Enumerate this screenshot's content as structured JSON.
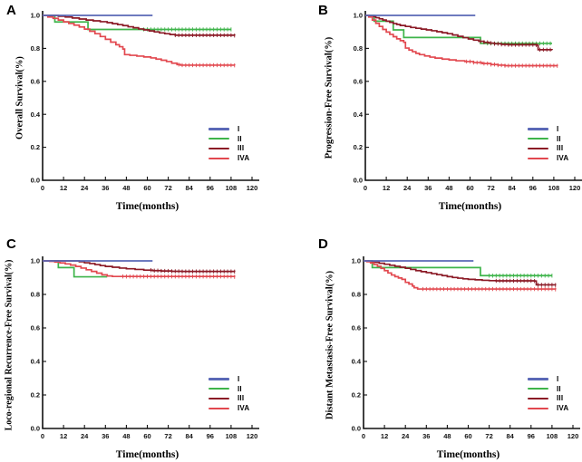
{
  "legend": {
    "items": [
      "I",
      "II",
      "III",
      "IVA"
    ],
    "position": "lower right"
  },
  "axes": {
    "xticks": [
      0,
      12,
      24,
      36,
      48,
      60,
      72,
      84,
      96,
      108,
      120
    ],
    "ytick_labels": [
      "1.0",
      "0.8",
      "0.6",
      "0.4",
      "0.2",
      "0.0"
    ],
    "xlim": [
      0,
      120
    ],
    "ylim": [
      0.0,
      1.0
    ]
  },
  "colors": {
    "I": "#5a68b6",
    "II": "#3eb44a",
    "III": "#8b1a26",
    "IVA": "#e2484f",
    "axis": "#111111"
  },
  "chart_data": [
    {
      "type": "line",
      "letter": "A",
      "ylabel": "Overall Survival(%)",
      "xlabel": "Time(months)",
      "xlim": [
        0,
        120
      ],
      "ylim": [
        0.0,
        1.0
      ],
      "legend_position": "lower right",
      "series": [
        {
          "name": "I",
          "color": "#5a68b6",
          "censor_from": null,
          "points": [
            [
              0,
              1
            ],
            [
              63,
              1
            ]
          ]
        },
        {
          "name": "II",
          "color": "#3eb44a",
          "censor_from": 58,
          "points": [
            [
              0,
              1
            ],
            [
              7,
              1
            ],
            [
              7,
              0.96
            ],
            [
              26,
              0.96
            ],
            [
              26,
              0.915
            ],
            [
              108,
              0.915
            ]
          ]
        },
        {
          "name": "III",
          "color": "#8b1a26",
          "censor_from": 76,
          "points": [
            [
              0,
              1
            ],
            [
              5,
              1
            ],
            [
              9,
              0.995
            ],
            [
              13,
              0.99
            ],
            [
              17,
              0.984
            ],
            [
              21,
              0.978
            ],
            [
              25,
              0.972
            ],
            [
              29,
              0.967
            ],
            [
              33,
              0.962
            ],
            [
              37,
              0.956
            ],
            [
              40,
              0.95
            ],
            [
              43,
              0.944
            ],
            [
              46,
              0.938
            ],
            [
              49,
              0.931
            ],
            [
              52,
              0.925
            ],
            [
              55,
              0.918
            ],
            [
              58,
              0.912
            ],
            [
              61,
              0.906
            ],
            [
              64,
              0.9
            ],
            [
              67,
              0.894
            ],
            [
              70,
              0.889
            ],
            [
              73,
              0.884
            ],
            [
              76,
              0.88
            ],
            [
              110,
              0.878
            ]
          ]
        },
        {
          "name": "IVA",
          "color": "#e2484f",
          "censor_from": 78,
          "points": [
            [
              0,
              1
            ],
            [
              3,
              0.99
            ],
            [
              6,
              0.982
            ],
            [
              9,
              0.972
            ],
            [
              12,
              0.961
            ],
            [
              15,
              0.951
            ],
            [
              18,
              0.941
            ],
            [
              21,
              0.93
            ],
            [
              24,
              0.917
            ],
            [
              27,
              0.904
            ],
            [
              30,
              0.889
            ],
            [
              33,
              0.872
            ],
            [
              36,
              0.855
            ],
            [
              39,
              0.838
            ],
            [
              42,
              0.822
            ],
            [
              44,
              0.81
            ],
            [
              46,
              0.796
            ],
            [
              47,
              0.762
            ],
            [
              50,
              0.758
            ],
            [
              54,
              0.753
            ],
            [
              58,
              0.748
            ],
            [
              62,
              0.742
            ],
            [
              65,
              0.735
            ],
            [
              68,
              0.728
            ],
            [
              71,
              0.72
            ],
            [
              74,
              0.71
            ],
            [
              77,
              0.702
            ],
            [
              79,
              0.698
            ],
            [
              110,
              0.697
            ]
          ]
        }
      ]
    },
    {
      "type": "line",
      "letter": "B",
      "ylabel": "Progression-Free Survival(%)",
      "xlabel": "Time(months)",
      "xlim": [
        0,
        120
      ],
      "ylim": [
        0.0,
        1.0
      ],
      "legend_position": "lower right",
      "series": [
        {
          "name": "I",
          "color": "#5a68b6",
          "censor_from": null,
          "points": [
            [
              0,
              1
            ],
            [
              63,
              1
            ]
          ]
        },
        {
          "name": "II",
          "color": "#3eb44a",
          "censor_from": 70,
          "points": [
            [
              0,
              1
            ],
            [
              5,
              1
            ],
            [
              5,
              0.965
            ],
            [
              16,
              0.965
            ],
            [
              16,
              0.912
            ],
            [
              22,
              0.912
            ],
            [
              22,
              0.866
            ],
            [
              66,
              0.866
            ],
            [
              66,
              0.83
            ],
            [
              107,
              0.83
            ]
          ]
        },
        {
          "name": "III",
          "color": "#8b1a26",
          "censor_from": 66,
          "points": [
            [
              0,
              1
            ],
            [
              2,
              0.998
            ],
            [
              4,
              0.993
            ],
            [
              6,
              0.986
            ],
            [
              8,
              0.979
            ],
            [
              10,
              0.972
            ],
            [
              12,
              0.965
            ],
            [
              14,
              0.958
            ],
            [
              16,
              0.951
            ],
            [
              18,
              0.945
            ],
            [
              20,
              0.939
            ],
            [
              23,
              0.933
            ],
            [
              26,
              0.927
            ],
            [
              29,
              0.922
            ],
            [
              32,
              0.917
            ],
            [
              35,
              0.912
            ],
            [
              38,
              0.907
            ],
            [
              41,
              0.901
            ],
            [
              44,
              0.895
            ],
            [
              47,
              0.889
            ],
            [
              50,
              0.881
            ],
            [
              53,
              0.873
            ],
            [
              56,
              0.865
            ],
            [
              59,
              0.857
            ],
            [
              62,
              0.85
            ],
            [
              65,
              0.843
            ],
            [
              68,
              0.837
            ],
            [
              71,
              0.832
            ],
            [
              74,
              0.828
            ],
            [
              78,
              0.824
            ],
            [
              82,
              0.822
            ],
            [
              98,
              0.82
            ],
            [
              99,
              0.792
            ],
            [
              107,
              0.79
            ]
          ]
        },
        {
          "name": "IVA",
          "color": "#e2484f",
          "censor_from": 58,
          "points": [
            [
              0,
              1
            ],
            [
              2,
              0.99
            ],
            [
              4,
              0.972
            ],
            [
              6,
              0.952
            ],
            [
              8,
              0.933
            ],
            [
              10,
              0.915
            ],
            [
              12,
              0.899
            ],
            [
              14,
              0.885
            ],
            [
              16,
              0.871
            ],
            [
              18,
              0.858
            ],
            [
              20,
              0.847
            ],
            [
              22,
              0.837
            ],
            [
              23,
              0.802
            ],
            [
              25,
              0.79
            ],
            [
              27,
              0.78
            ],
            [
              29,
              0.77
            ],
            [
              31,
              0.762
            ],
            [
              34,
              0.754
            ],
            [
              37,
              0.747
            ],
            [
              40,
              0.741
            ],
            [
              44,
              0.735
            ],
            [
              48,
              0.73
            ],
            [
              52,
              0.725
            ],
            [
              57,
              0.72
            ],
            [
              62,
              0.714
            ],
            [
              67,
              0.708
            ],
            [
              72,
              0.702
            ],
            [
              76,
              0.698
            ],
            [
              80,
              0.695
            ],
            [
              110,
              0.694
            ]
          ]
        }
      ]
    },
    {
      "type": "line",
      "letter": "C",
      "ylabel": "Loco-regional Recurrence-Free Survival(%)",
      "xlabel": "Time(months)",
      "xlim": [
        0,
        120
      ],
      "ylim": [
        0.0,
        1.0
      ],
      "legend_position": "lower right",
      "series": [
        {
          "name": "I",
          "color": "#5a68b6",
          "censor_from": null,
          "points": [
            [
              0,
              1
            ],
            [
              63,
              1
            ]
          ]
        },
        {
          "name": "II",
          "color": "#3eb44a",
          "censor_from": null,
          "points": [
            [
              0,
              1
            ],
            [
              9,
              1
            ],
            [
              9,
              0.96
            ],
            [
              18,
              0.96
            ],
            [
              18,
              0.905
            ],
            [
              37,
              0.905
            ]
          ]
        },
        {
          "name": "III",
          "color": "#8b1a26",
          "censor_from": 62,
          "points": [
            [
              0,
              1
            ],
            [
              18,
              1
            ],
            [
              21,
              0.995
            ],
            [
              24,
              0.989
            ],
            [
              27,
              0.984
            ],
            [
              30,
              0.978
            ],
            [
              33,
              0.972
            ],
            [
              36,
              0.967
            ],
            [
              40,
              0.962
            ],
            [
              44,
              0.957
            ],
            [
              48,
              0.953
            ],
            [
              53,
              0.949
            ],
            [
              58,
              0.945
            ],
            [
              63,
              0.942
            ],
            [
              68,
              0.94
            ],
            [
              74,
              0.938
            ],
            [
              80,
              0.937
            ],
            [
              110,
              0.936
            ]
          ]
        },
        {
          "name": "IVA",
          "color": "#e2484f",
          "censor_from": 46,
          "points": [
            [
              0,
              1
            ],
            [
              4,
              0.997
            ],
            [
              7,
              0.993
            ],
            [
              10,
              0.988
            ],
            [
              13,
              0.982
            ],
            [
              16,
              0.975
            ],
            [
              19,
              0.967
            ],
            [
              22,
              0.957
            ],
            [
              25,
              0.947
            ],
            [
              28,
              0.937
            ],
            [
              31,
              0.927
            ],
            [
              34,
              0.917
            ],
            [
              37,
              0.91
            ],
            [
              40,
              0.907
            ],
            [
              110,
              0.905
            ]
          ]
        }
      ]
    },
    {
      "type": "line",
      "letter": "D",
      "ylabel": "Distant Metastasis-Free Survival(%)",
      "xlabel": "Time(months)",
      "xlim": [
        0,
        120
      ],
      "ylim": [
        0.0,
        1.0
      ],
      "legend_position": "lower right",
      "series": [
        {
          "name": "I",
          "color": "#5a68b6",
          "censor_from": null,
          "points": [
            [
              0,
              1
            ],
            [
              63,
              1
            ]
          ]
        },
        {
          "name": "II",
          "color": "#3eb44a",
          "censor_from": 72,
          "points": [
            [
              0,
              1
            ],
            [
              5,
              1
            ],
            [
              5,
              0.96
            ],
            [
              67,
              0.96
            ],
            [
              67,
              0.912
            ],
            [
              108,
              0.912
            ]
          ]
        },
        {
          "name": "III",
          "color": "#8b1a26",
          "censor_from": 76,
          "points": [
            [
              0,
              1
            ],
            [
              3,
              0.997
            ],
            [
              6,
              0.992
            ],
            [
              9,
              0.986
            ],
            [
              12,
              0.98
            ],
            [
              15,
              0.974
            ],
            [
              18,
              0.968
            ],
            [
              21,
              0.962
            ],
            [
              24,
              0.956
            ],
            [
              27,
              0.949
            ],
            [
              30,
              0.942
            ],
            [
              33,
              0.936
            ],
            [
              36,
              0.93
            ],
            [
              39,
              0.924
            ],
            [
              42,
              0.918
            ],
            [
              45,
              0.912
            ],
            [
              48,
              0.906
            ],
            [
              51,
              0.901
            ],
            [
              54,
              0.897
            ],
            [
              57,
              0.893
            ],
            [
              60,
              0.89
            ],
            [
              64,
              0.887
            ],
            [
              68,
              0.884
            ],
            [
              72,
              0.882
            ],
            [
              76,
              0.881
            ],
            [
              98,
              0.88
            ],
            [
              99,
              0.857
            ],
            [
              110,
              0.856
            ]
          ]
        },
        {
          "name": "IVA",
          "color": "#e2484f",
          "censor_from": 34,
          "points": [
            [
              0,
              1
            ],
            [
              2,
              0.995
            ],
            [
              4,
              0.988
            ],
            [
              6,
              0.978
            ],
            [
              8,
              0.968
            ],
            [
              10,
              0.955
            ],
            [
              12,
              0.942
            ],
            [
              14,
              0.928
            ],
            [
              16,
              0.916
            ],
            [
              18,
              0.906
            ],
            [
              20,
              0.898
            ],
            [
              22,
              0.89
            ],
            [
              24,
              0.872
            ],
            [
              26,
              0.862
            ],
            [
              28,
              0.85
            ],
            [
              29,
              0.84
            ],
            [
              31,
              0.832
            ],
            [
              110,
              0.83
            ]
          ]
        }
      ]
    }
  ]
}
